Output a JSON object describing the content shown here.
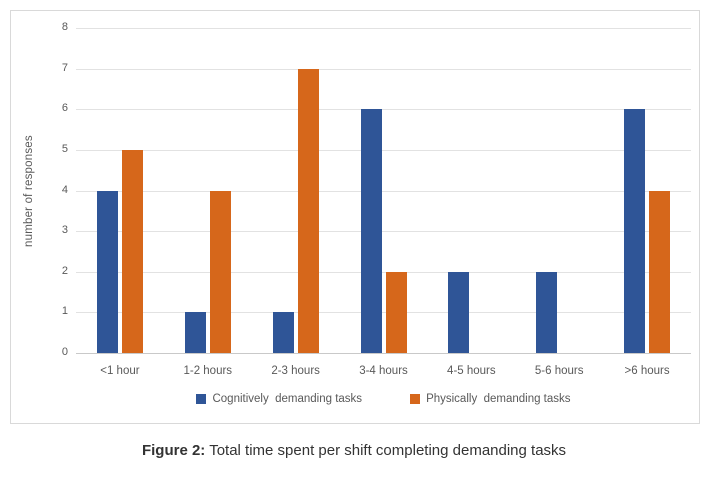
{
  "figure": {
    "caption_label": "Figure 2:",
    "caption_text": " Total time spent per shift completing demanding tasks"
  },
  "chart_data": {
    "type": "bar",
    "title": "",
    "categories": [
      "<1 hour",
      "1-2 hours",
      "2-3 hours",
      "3-4 hours",
      "4-5 hours",
      "5-6 hours",
      ">6 hours"
    ],
    "series": [
      {
        "name": "Cognitively  demanding tasks",
        "color": "#2F5597",
        "values": [
          4,
          1,
          1,
          6,
          2,
          2,
          6
        ]
      },
      {
        "name": "Physically  demanding tasks",
        "color": "#D6671B",
        "values": [
          5,
          4,
          7,
          2,
          0,
          0,
          4
        ]
      }
    ],
    "xlabel": "",
    "ylabel": "number of responses",
    "ylim": [
      0,
      8
    ],
    "ytick_step": 1,
    "grid": true,
    "legend_position": "bottom"
  },
  "colors": {
    "gridline": "#E2E2E2",
    "baseline": "#C9C9C9",
    "axis_text": "#595959",
    "frame_border": "#D9D9D9",
    "caption_text": "#333333",
    "background": "#FFFFFF"
  }
}
